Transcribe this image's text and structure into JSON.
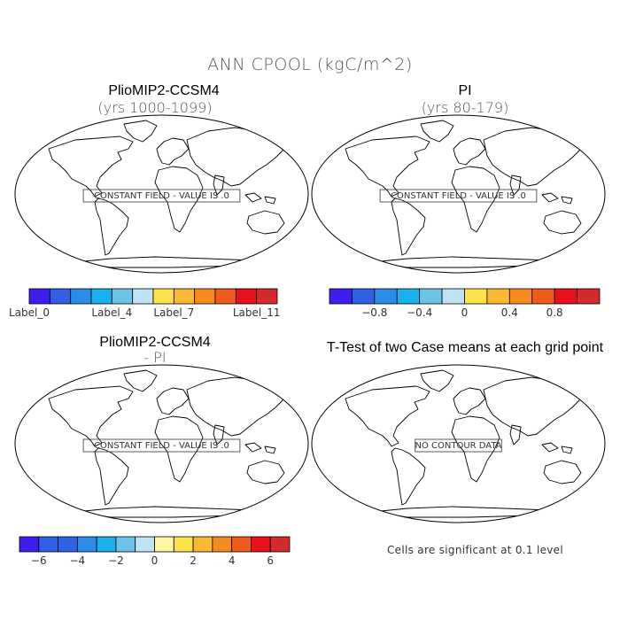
{
  "figure": {
    "main_title": "ANN CPOOL (kgC/m^2)",
    "note": "Cells are significant at 0.1 level"
  },
  "panels": [
    {
      "title": "PlioMIP2-CCSM4",
      "subtitle": "(yrs 1000-1099)",
      "message": "CONSTANT FIELD - VALUE IS .0"
    },
    {
      "title": "PI",
      "subtitle": "(yrs 80-179)",
      "message": "CONSTANT FIELD - VALUE IS .0"
    },
    {
      "title": "PlioMIP2-CCSM4",
      "subtitle": "- PI",
      "message": "CONSTANT FIELD - VALUE IS .0"
    },
    {
      "title": "T-Test of two Case means at each grid point",
      "subtitle": "",
      "message": "NO CONTOUR DATA"
    }
  ],
  "colorbars": [
    {
      "colors": [
        "#3d1eef",
        "#2f5fe2",
        "#2c8de8",
        "#19b0ec",
        "#6dc3e8",
        "#bfe3f2",
        "#fde24a",
        "#fbb933",
        "#f58a1e",
        "#ef5a1d",
        "#e8101d",
        "#d32a2d"
      ],
      "labels": [
        {
          "text": "Label_0",
          "at": 0
        },
        {
          "text": "Label_4",
          "at": 4
        },
        {
          "text": "Label_7",
          "at": 7
        },
        {
          "text": "Label_11",
          "at": 11
        }
      ]
    },
    {
      "colors": [
        "#3d1eef",
        "#2f5fe2",
        "#2c8de8",
        "#19b0ec",
        "#6dc3e8",
        "#bfe3f2",
        "#fde24a",
        "#fbb933",
        "#f58a1e",
        "#ef5a1d",
        "#e8101d",
        "#d32a2d"
      ],
      "labels": [
        {
          "text": "−0.8",
          "at": 2
        },
        {
          "text": "−0.4",
          "at": 4
        },
        {
          "text": "0",
          "at": 6
        },
        {
          "text": "0.4",
          "at": 8
        },
        {
          "text": "0.8",
          "at": 10
        }
      ]
    },
    {
      "colors": [
        "#3d1eef",
        "#2f5fe2",
        "#2c63e6",
        "#2c8de8",
        "#19b0ec",
        "#6dc3e8",
        "#bfe3f2",
        "#fff6a0",
        "#fde24a",
        "#fbb933",
        "#f58a1e",
        "#ef5a1d",
        "#e8101d",
        "#d32a2d"
      ],
      "labels": [
        {
          "text": "−6",
          "at": 1
        },
        {
          "text": "−4",
          "at": 3
        },
        {
          "text": "−2",
          "at": 5
        },
        {
          "text": "0",
          "at": 7
        },
        {
          "text": "2",
          "at": 9
        },
        {
          "text": "4",
          "at": 11
        },
        {
          "text": "6",
          "at": 13
        }
      ]
    }
  ]
}
